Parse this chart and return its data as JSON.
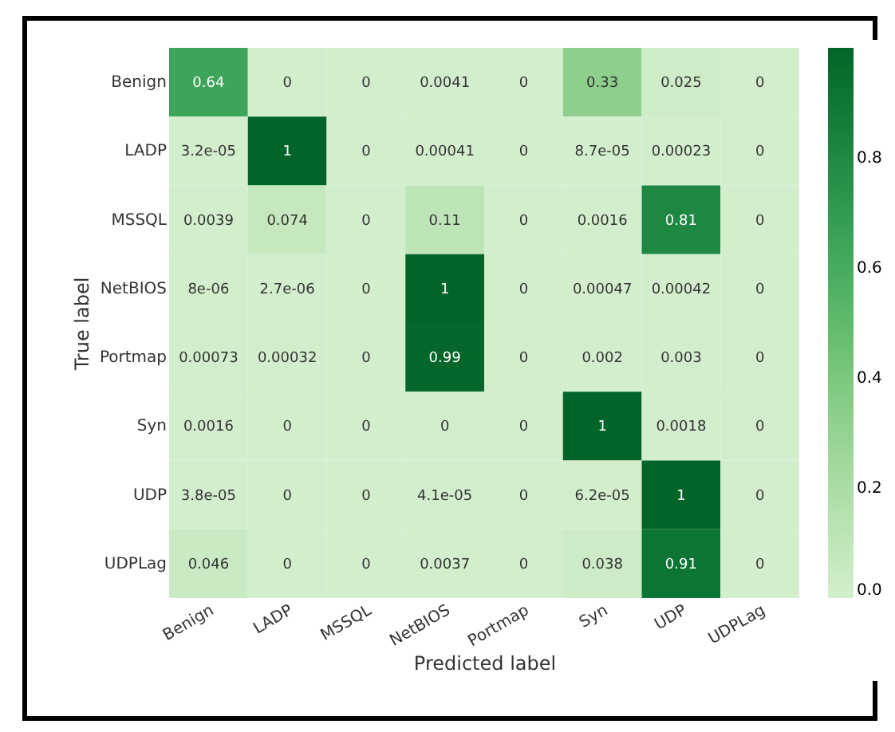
{
  "chart_data": {
    "type": "heatmap",
    "xlabel": "Predicted label",
    "ylabel": "True label",
    "categories": [
      "Benign",
      "LADP",
      "MSSQL",
      "NetBIOS",
      "Portmap",
      "Syn",
      "UDP",
      "UDPLag"
    ],
    "y_categories": [
      "Benign",
      "LADP",
      "MSSQL",
      "NetBIOS",
      "Portmap",
      "Syn",
      "UDP",
      "UDPLag"
    ],
    "cells": [
      [
        0.64,
        0,
        0,
        0.0041,
        0,
        0.33,
        0.025,
        0
      ],
      [
        3.2e-05,
        1,
        0,
        0.00041,
        0,
        8.7e-05,
        0.00023,
        0
      ],
      [
        0.0039,
        0.074,
        0,
        0.11,
        0,
        0.0016,
        0.81,
        0
      ],
      [
        8e-06,
        2.7e-06,
        0,
        1,
        0,
        0.00047,
        0.00042,
        0
      ],
      [
        0.00073,
        0.00032,
        0,
        0.99,
        0,
        0.002,
        0.003,
        0
      ],
      [
        0.0016,
        0,
        0,
        0,
        0,
        1,
        0.0018,
        0
      ],
      [
        3.8e-05,
        0,
        0,
        4.1e-05,
        0,
        6.2e-05,
        1,
        0
      ],
      [
        0.046,
        0,
        0,
        0.0037,
        0,
        0.038,
        0.91,
        0
      ]
    ],
    "cell_labels": [
      [
        "0.64",
        "0",
        "0",
        "0.0041",
        "0",
        "0.33",
        "0.025",
        "0"
      ],
      [
        "3.2e-05",
        "1",
        "0",
        "0.00041",
        "0",
        "8.7e-05",
        "0.00023",
        "0"
      ],
      [
        "0.0039",
        "0.074",
        "0",
        "0.11",
        "0",
        "0.0016",
        "0.81",
        "0"
      ],
      [
        "8e-06",
        "2.7e-06",
        "0",
        "1",
        "0",
        "0.00047",
        "0.00042",
        "0"
      ],
      [
        "0.00073",
        "0.00032",
        "0",
        "0.99",
        "0",
        "0.002",
        "0.003",
        "0"
      ],
      [
        "0.0016",
        "0",
        "0",
        "0",
        "0",
        "1",
        "0.0018",
        "0"
      ],
      [
        "3.8e-05",
        "0",
        "0",
        "4.1e-05",
        "0",
        "6.2e-05",
        "1",
        "0"
      ],
      [
        "0.046",
        "0",
        "0",
        "0.0037",
        "0",
        "0.038",
        "0.91",
        "0"
      ]
    ],
    "clim": [
      0,
      1
    ],
    "cticks": [
      {
        "value": 0,
        "label": "0.0"
      },
      {
        "value": 0.2,
        "label": "0.2"
      },
      {
        "value": 0.4,
        "label": "0.4"
      },
      {
        "value": 0.6,
        "label": "0.6"
      },
      {
        "value": 0.8,
        "label": "0.8"
      }
    ]
  }
}
